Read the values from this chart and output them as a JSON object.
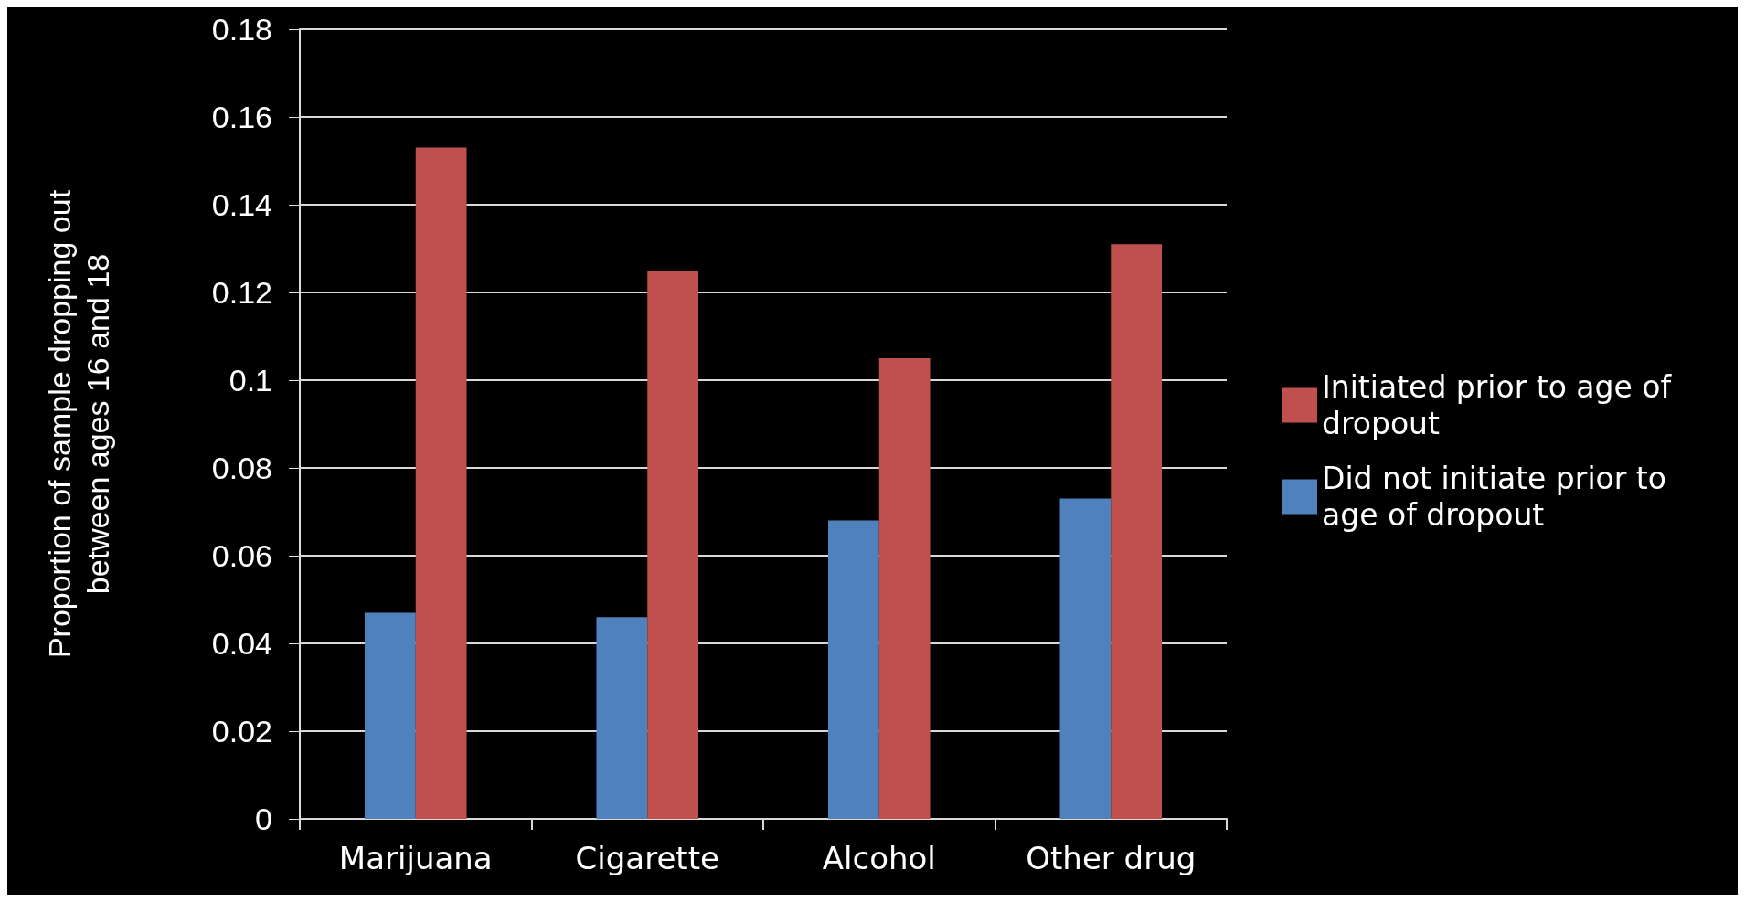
{
  "chart_data": {
    "type": "bar",
    "ylabel": "Proportion of sample dropping out\nbetween ages 16 and 18",
    "categories": [
      "Marijuana",
      "Cigarette",
      "Alcohol",
      "Other drug"
    ],
    "series": [
      {
        "name": "Did not initiate prior to age of dropout",
        "color": "#4f81bd",
        "values": [
          0.047,
          0.046,
          0.068,
          0.073
        ]
      },
      {
        "name": "Initiated prior to age of dropout",
        "color": "#c0504d",
        "values": [
          0.153,
          0.125,
          0.105,
          0.131
        ]
      }
    ],
    "ylim": [
      0,
      0.18
    ],
    "yticks": [
      0,
      0.02,
      0.04,
      0.06,
      0.08,
      0.1,
      0.12,
      0.14,
      0.16,
      0.18
    ],
    "grid": "y",
    "legend": "right"
  }
}
